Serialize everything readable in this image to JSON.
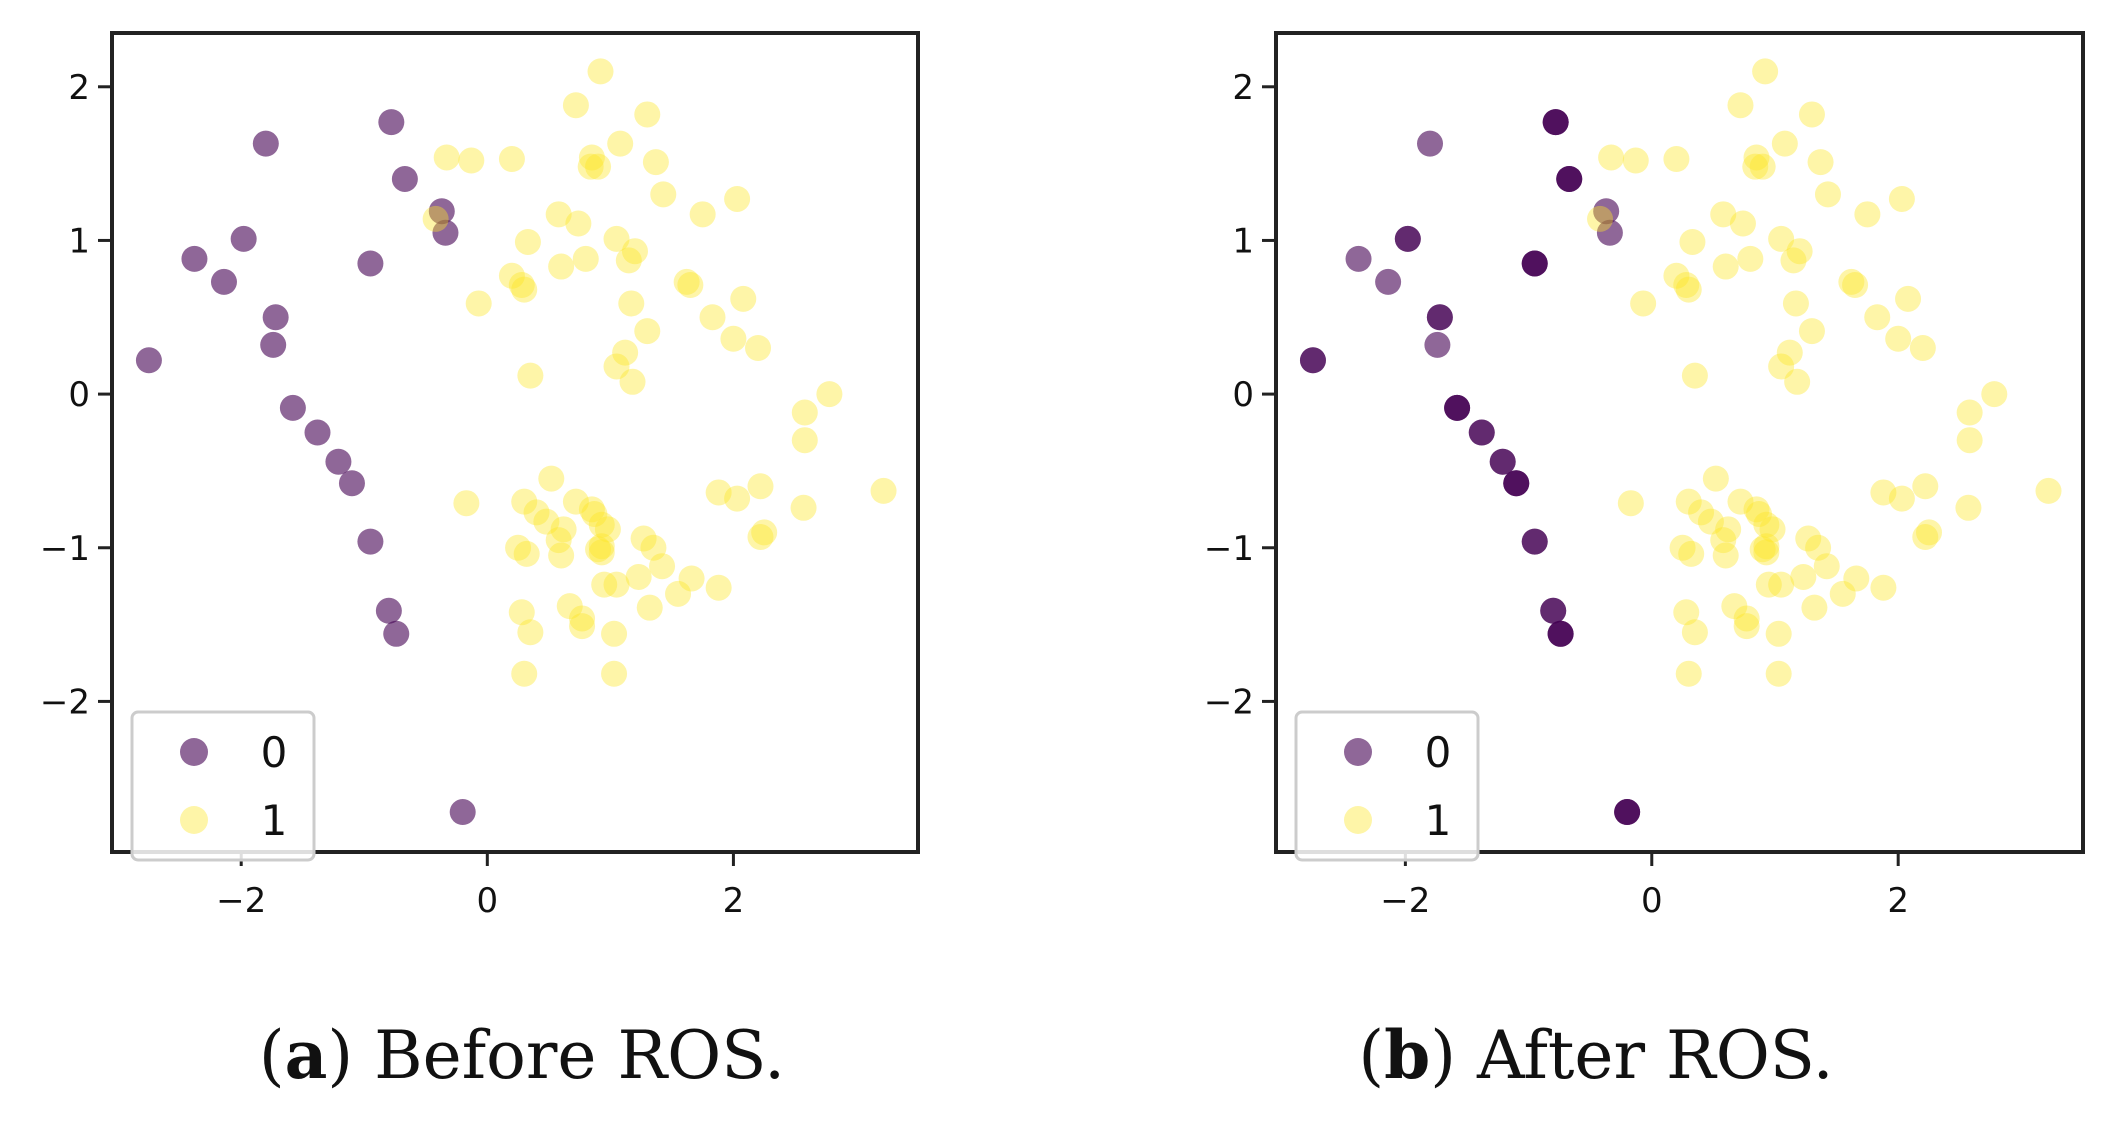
{
  "chart_data": [
    {
      "type": "scatter",
      "caption_letter": "a",
      "caption_text": "Before ROS.",
      "xlim": [
        -3.05,
        3.5
      ],
      "ylim": [
        -2.98,
        2.35
      ],
      "xticks": [
        -2,
        0,
        2
      ],
      "yticks": [
        -2,
        -1,
        0,
        1,
        2
      ],
      "xtick_labels": [
        "−2",
        "0",
        "2"
      ],
      "ytick_labels": [
        "−2",
        "−1",
        "0",
        "1",
        "2"
      ],
      "grid": false,
      "legend_position": "lower-left",
      "series": [
        {
          "name": "0",
          "color": "#440154",
          "opacity": 0.6,
          "points": [
            [
              -2.75,
              0.22
            ],
            [
              -2.38,
              0.88
            ],
            [
              -2.14,
              0.73
            ],
            [
              -1.98,
              1.01
            ],
            [
              -1.8,
              1.63
            ],
            [
              -1.72,
              0.5
            ],
            [
              -1.74,
              0.32
            ],
            [
              -1.58,
              -0.09
            ],
            [
              -1.38,
              -0.25
            ],
            [
              -1.21,
              -0.44
            ],
            [
              -1.1,
              -0.58
            ],
            [
              -0.95,
              -0.96
            ],
            [
              -0.95,
              0.85
            ],
            [
              -0.8,
              -1.41
            ],
            [
              -0.78,
              1.77
            ],
            [
              -0.74,
              -1.56
            ],
            [
              -0.67,
              1.4
            ],
            [
              -0.37,
              1.19
            ],
            [
              -0.34,
              1.05
            ],
            [
              -0.2,
              -2.72
            ]
          ]
        },
        {
          "name": "1",
          "color": "#fde725",
          "opacity": 0.4,
          "points": [
            [
              0.72,
              1.88
            ],
            [
              0.92,
              2.1
            ],
            [
              1.3,
              1.82
            ],
            [
              -0.33,
              1.54
            ],
            [
              -0.13,
              1.52
            ],
            [
              0.2,
              1.53
            ],
            [
              0.85,
              1.54
            ],
            [
              0.84,
              1.48
            ],
            [
              0.9,
              1.48
            ],
            [
              1.08,
              1.63
            ],
            [
              1.37,
              1.51
            ],
            [
              1.43,
              1.3
            ],
            [
              -0.42,
              1.14
            ],
            [
              0.58,
              1.17
            ],
            [
              0.74,
              1.11
            ],
            [
              1.75,
              1.17
            ],
            [
              2.03,
              1.27
            ],
            [
              0.33,
              0.99
            ],
            [
              0.6,
              0.83
            ],
            [
              0.8,
              0.88
            ],
            [
              1.05,
              1.01
            ],
            [
              1.15,
              0.87
            ],
            [
              1.2,
              0.93
            ],
            [
              0.2,
              0.77
            ],
            [
              0.28,
              0.71
            ],
            [
              0.3,
              0.68
            ],
            [
              -0.07,
              0.59
            ],
            [
              1.62,
              0.73
            ],
            [
              1.65,
              0.71
            ],
            [
              2.08,
              0.62
            ],
            [
              1.17,
              0.59
            ],
            [
              1.3,
              0.41
            ],
            [
              1.83,
              0.5
            ],
            [
              2.0,
              0.36
            ],
            [
              2.2,
              0.3
            ],
            [
              1.05,
              0.18
            ],
            [
              1.12,
              0.27
            ],
            [
              1.18,
              0.08
            ],
            [
              0.35,
              0.12
            ],
            [
              2.78,
              0.0
            ],
            [
              2.58,
              -0.12
            ],
            [
              2.58,
              -0.3
            ],
            [
              1.88,
              -0.64
            ],
            [
              2.03,
              -0.68
            ],
            [
              2.22,
              -0.6
            ],
            [
              3.22,
              -0.63
            ],
            [
              2.57,
              -0.74
            ],
            [
              2.25,
              -0.9
            ],
            [
              2.22,
              -0.93
            ],
            [
              0.52,
              -0.55
            ],
            [
              0.3,
              -0.7
            ],
            [
              0.4,
              -0.77
            ],
            [
              0.48,
              -0.83
            ],
            [
              0.72,
              -0.7
            ],
            [
              0.85,
              -0.75
            ],
            [
              0.87,
              -0.78
            ],
            [
              0.93,
              -0.85
            ],
            [
              0.98,
              -0.88
            ],
            [
              0.62,
              -0.88
            ],
            [
              0.58,
              -0.95
            ],
            [
              -0.17,
              -0.71
            ],
            [
              0.25,
              -1.0
            ],
            [
              0.32,
              -1.04
            ],
            [
              0.6,
              -1.05
            ],
            [
              0.9,
              -1.01
            ],
            [
              0.93,
              -1.03
            ],
            [
              0.93,
              -0.99
            ],
            [
              1.27,
              -0.94
            ],
            [
              1.35,
              -1.0
            ],
            [
              1.42,
              -1.12
            ],
            [
              1.23,
              -1.19
            ],
            [
              1.05,
              -1.24
            ],
            [
              0.95,
              -1.24
            ],
            [
              1.66,
              -1.2
            ],
            [
              1.55,
              -1.3
            ],
            [
              1.88,
              -1.26
            ],
            [
              0.28,
              -1.42
            ],
            [
              0.67,
              -1.38
            ],
            [
              0.77,
              -1.46
            ],
            [
              1.32,
              -1.39
            ],
            [
              0.35,
              -1.55
            ],
            [
              0.77,
              -1.51
            ],
            [
              1.03,
              -1.56
            ],
            [
              0.3,
              -1.82
            ],
            [
              1.03,
              -1.82
            ]
          ]
        }
      ]
    },
    {
      "type": "scatter",
      "caption_letter": "b",
      "caption_text": "After ROS.",
      "xlim": [
        -3.05,
        3.5
      ],
      "ylim": [
        -2.98,
        2.35
      ],
      "xticks": [
        -2,
        0,
        2
      ],
      "yticks": [
        -2,
        -1,
        0,
        1,
        2
      ],
      "xtick_labels": [
        "−2",
        "0",
        "2"
      ],
      "ytick_labels": [
        "−2",
        "−1",
        "0",
        "1",
        "2"
      ],
      "grid": false,
      "legend_position": "lower-left",
      "overlap_emphasis": "stacked duplicate minority points appear darker",
      "series": [
        {
          "name": "0",
          "color": "#440154",
          "opacity": 0.6,
          "points": [
            [
              -2.75,
              0.22
            ],
            [
              -2.75,
              0.22
            ],
            [
              -2.38,
              0.88
            ],
            [
              -2.14,
              0.73
            ],
            [
              -1.98,
              1.01
            ],
            [
              -1.98,
              1.01
            ],
            [
              -1.8,
              1.63
            ],
            [
              -1.72,
              0.5
            ],
            [
              -1.72,
              0.5
            ],
            [
              -1.74,
              0.32
            ],
            [
              -1.58,
              -0.09
            ],
            [
              -1.58,
              -0.09
            ],
            [
              -1.58,
              -0.09
            ],
            [
              -1.38,
              -0.25
            ],
            [
              -1.38,
              -0.25
            ],
            [
              -1.21,
              -0.44
            ],
            [
              -1.21,
              -0.44
            ],
            [
              -1.1,
              -0.58
            ],
            [
              -1.1,
              -0.58
            ],
            [
              -1.1,
              -0.58
            ],
            [
              -0.95,
              -0.96
            ],
            [
              -0.95,
              -0.96
            ],
            [
              -0.95,
              0.85
            ],
            [
              -0.95,
              0.85
            ],
            [
              -0.95,
              0.85
            ],
            [
              -0.8,
              -1.41
            ],
            [
              -0.8,
              -1.41
            ],
            [
              -0.78,
              1.77
            ],
            [
              -0.78,
              1.77
            ],
            [
              -0.78,
              1.77
            ],
            [
              -0.74,
              -1.56
            ],
            [
              -0.74,
              -1.56
            ],
            [
              -0.74,
              -1.56
            ],
            [
              -0.67,
              1.4
            ],
            [
              -0.67,
              1.4
            ],
            [
              -0.67,
              1.4
            ],
            [
              -0.37,
              1.19
            ],
            [
              -0.34,
              1.05
            ],
            [
              -0.2,
              -2.72
            ],
            [
              -0.2,
              -2.72
            ],
            [
              -0.2,
              -2.72
            ]
          ]
        },
        {
          "name": "1",
          "color": "#fde725",
          "opacity": 0.4,
          "points": "same as panel (a)"
        }
      ]
    }
  ]
}
